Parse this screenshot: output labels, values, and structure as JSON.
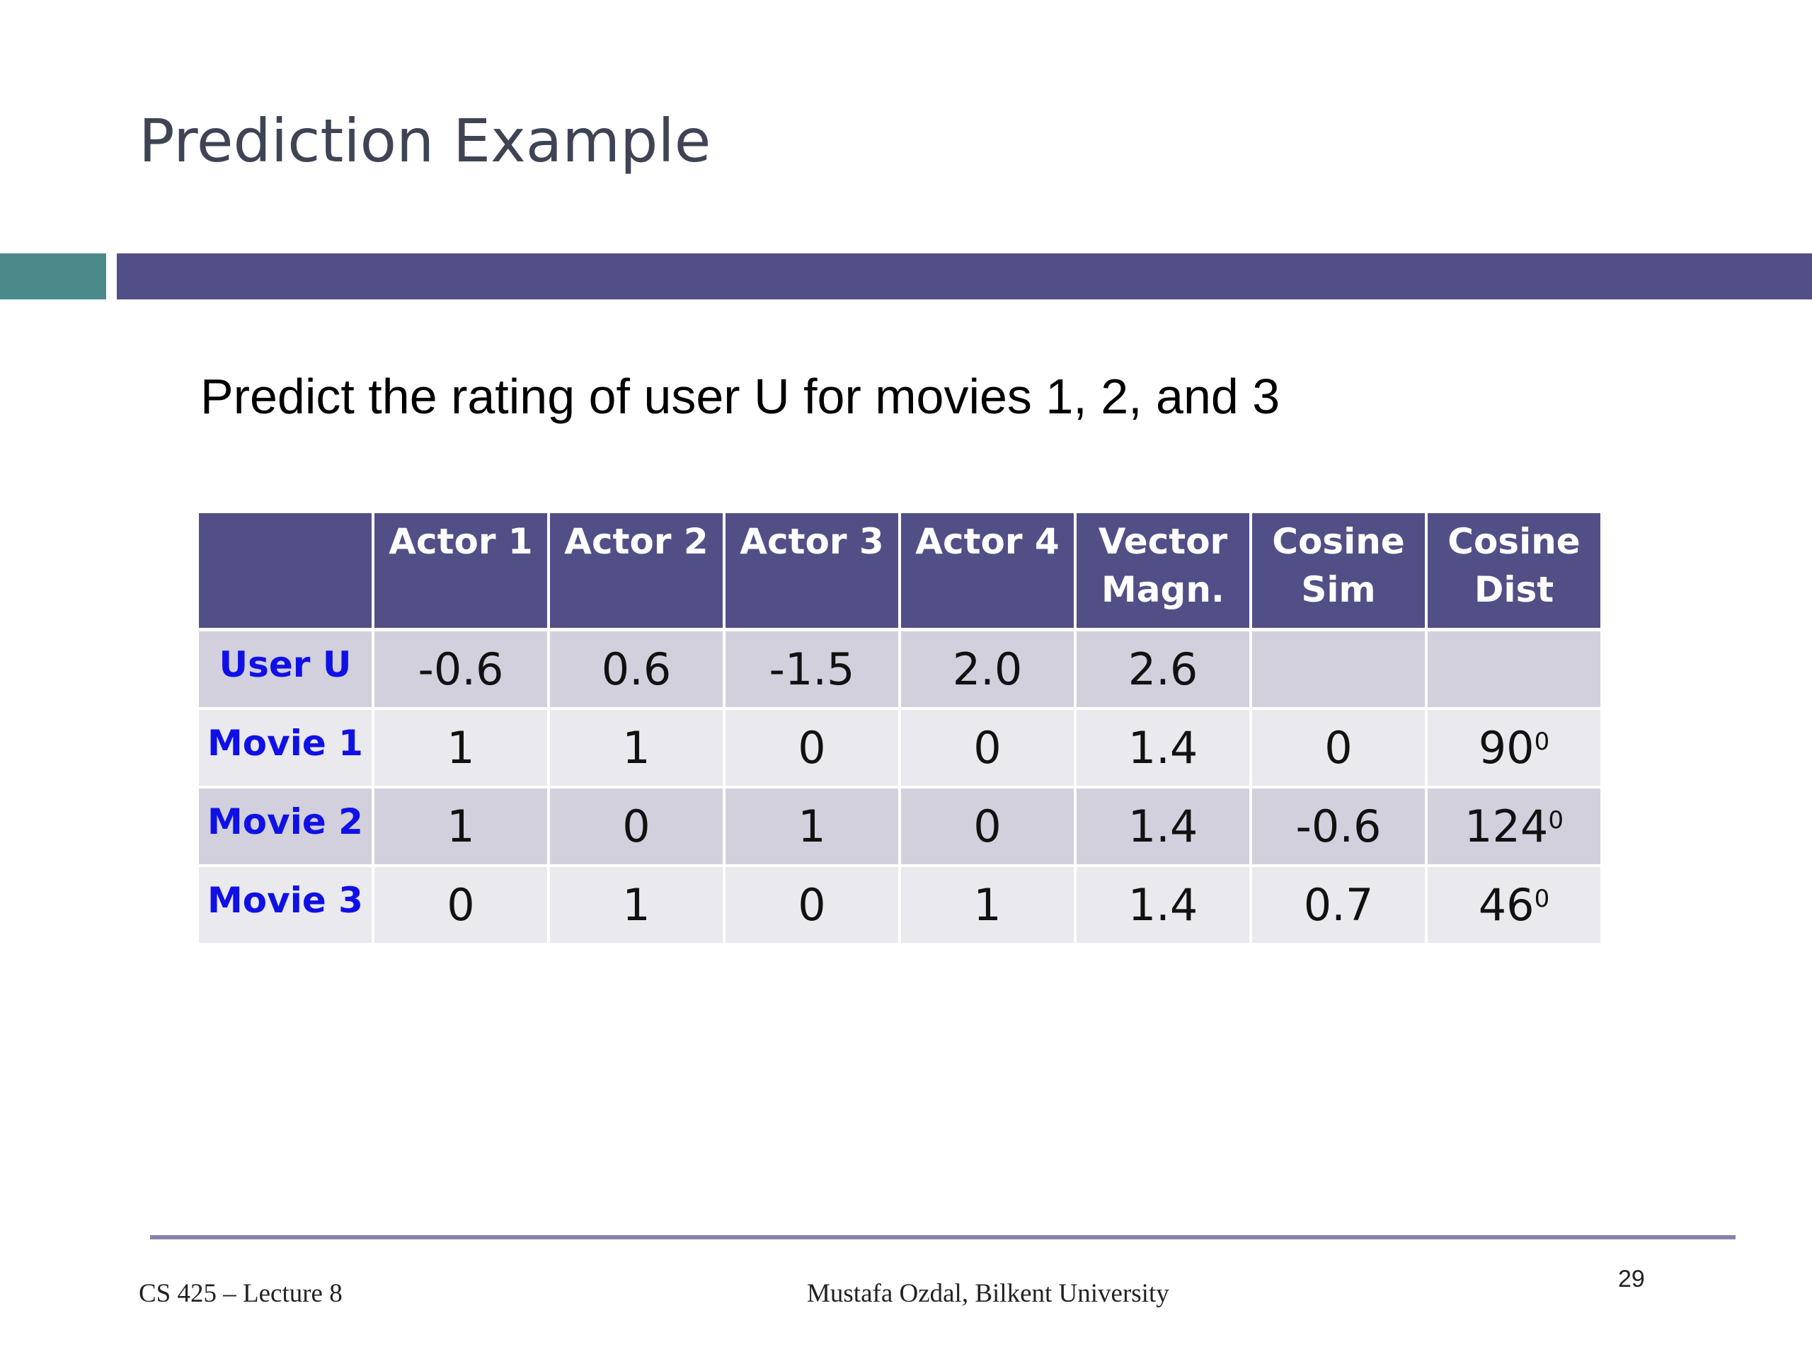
{
  "slide": {
    "title": "Prediction Example",
    "subtitle": "Predict the rating of user U for movies 1, 2, and 3"
  },
  "table": {
    "headers": [
      "",
      "Actor 1",
      "Actor 2",
      "Actor 3",
      "Actor 4",
      "Vector Magn.",
      "Cosine Sim",
      "Cosine Dist"
    ],
    "header_lines": [
      [
        "",
        ""
      ],
      [
        "Actor 1",
        ""
      ],
      [
        "Actor 2",
        ""
      ],
      [
        "Actor 3",
        ""
      ],
      [
        "Actor 4",
        ""
      ],
      [
        "Vector",
        "Magn."
      ],
      [
        "Cosine",
        "Sim"
      ],
      [
        "Cosine",
        "Dist"
      ]
    ],
    "rows": [
      {
        "label": "User U",
        "cells": [
          "-0.6",
          "0.6",
          "-1.5",
          "2.0",
          "2.6",
          "",
          ""
        ],
        "dist_sup": ""
      },
      {
        "label": "Movie 1",
        "cells": [
          "1",
          "1",
          "0",
          "0",
          "1.4",
          "0",
          "90"
        ],
        "dist_sup": "0"
      },
      {
        "label": "Movie 2",
        "cells": [
          "1",
          "0",
          "1",
          "0",
          "1.4",
          "-0.6",
          "124"
        ],
        "dist_sup": "0"
      },
      {
        "label": "Movie 3",
        "cells": [
          "0",
          "1",
          "0",
          "1",
          "1.4",
          "0.7",
          "46"
        ],
        "dist_sup": "0"
      }
    ]
  },
  "footer": {
    "left": "CS 425 – Lecture 8",
    "center": "Mustafa Ozdal, Bilkent University",
    "page_number": "29"
  },
  "colors": {
    "header_bg": "#524f87",
    "teal_band": "#4b8a8a",
    "row_label": "#1010e6",
    "row_dark": "#d1d0dc",
    "row_light": "#e9e9ee"
  }
}
